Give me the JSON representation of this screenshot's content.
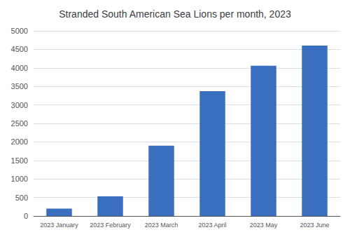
{
  "chart_data": {
    "type": "bar",
    "title": "Stranded South American Sea Lions per month, 2023",
    "categories": [
      "2023 January",
      "2023 February",
      "2023 March",
      "2023 April",
      "2023 May",
      "2023 June"
    ],
    "values": [
      200,
      530,
      1900,
      3370,
      4060,
      4600
    ],
    "color": "#3A6EBF",
    "ylim": [
      0,
      5000
    ],
    "yticks": [
      0,
      500,
      1000,
      1500,
      2000,
      2500,
      3000,
      3500,
      4000,
      4500,
      5000
    ],
    "grid": true
  }
}
